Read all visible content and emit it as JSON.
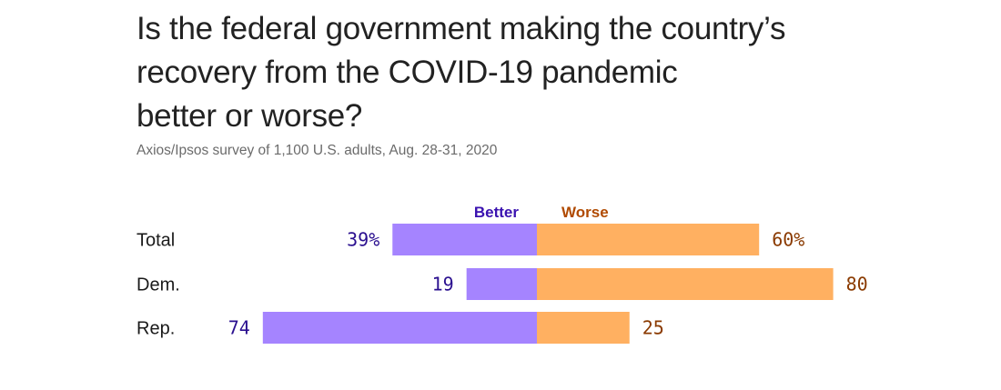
{
  "title": "Is the federal government making the country’s recovery from the COVID-19 pandemic better or worse?",
  "title_lines": [
    "Is the federal government making the country’s",
    "recovery from the COVID-19 pandemic",
    "better or worse?"
  ],
  "subtitle": "Axios/Ipsos survey of 1,100 U.S. adults, Aug. 28-31, 2020",
  "colors": {
    "better_bar": "#a584ff",
    "worse_bar": "#ffb061",
    "better_text": "#2a0f8f",
    "worse_text": "#8a3a00",
    "better_legend": "#3a12b0",
    "worse_legend": "#b04a00"
  },
  "chart_data": {
    "type": "bar",
    "orientation": "horizontal-diverging",
    "title": "Is the federal government making the country’s recovery from the COVID-19 pandemic better or worse?",
    "subtitle": "Axios/Ipsos survey of 1,100 U.S. adults, Aug. 28-31, 2020",
    "categories": [
      "Total",
      "Dem.",
      "Rep."
    ],
    "series": [
      {
        "name": "Better",
        "values": [
          39,
          19,
          74
        ],
        "labels": [
          "39%",
          "19",
          "74"
        ]
      },
      {
        "name": "Worse",
        "values": [
          60,
          80,
          25
        ],
        "labels": [
          "60%",
          "80",
          "25"
        ]
      }
    ],
    "legend_placement": "top-center",
    "grid": false
  }
}
